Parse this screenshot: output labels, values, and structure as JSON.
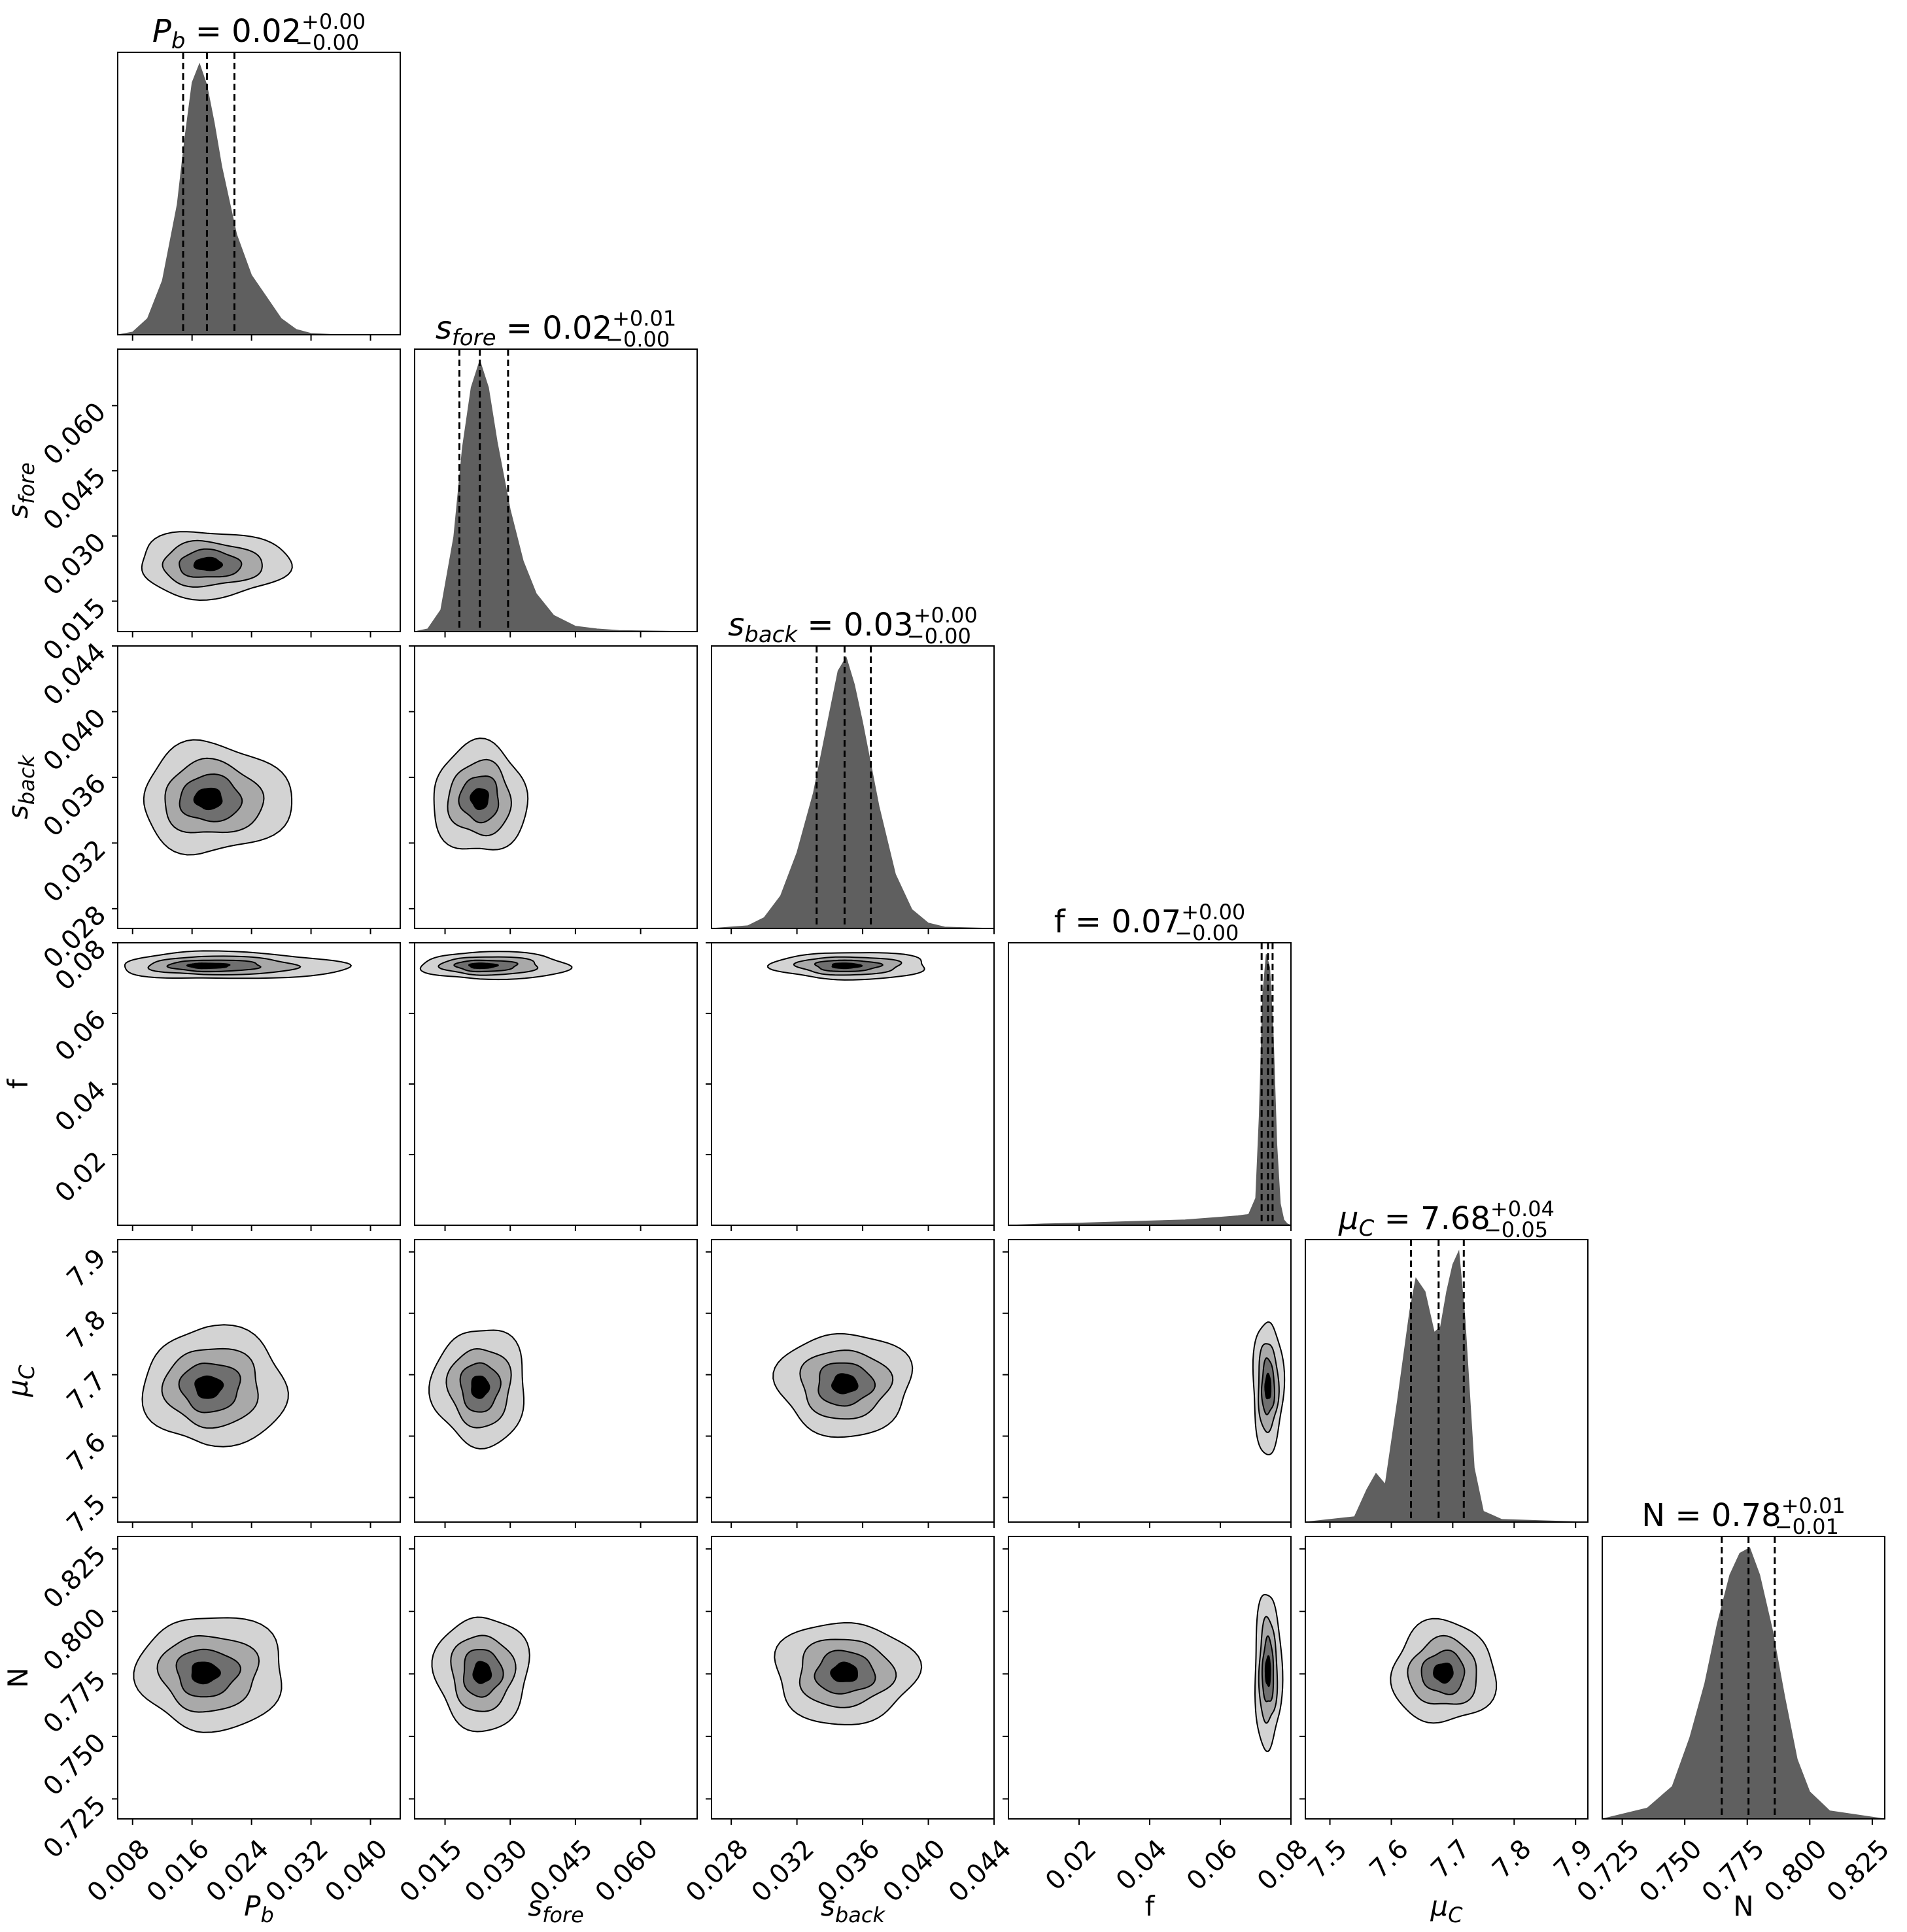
{
  "chart_data": {
    "type": "corner",
    "parameters": [
      {
        "id": "Pb",
        "sym": "P",
        "sub": "b",
        "italic": true,
        "title_value": "0.02",
        "title_plus": "+0.00",
        "title_minus": "−0.00",
        "range": [
          0.006,
          0.044
        ],
        "ticks": [
          "0.008",
          "0.016",
          "0.024",
          "0.032",
          "0.040"
        ],
        "tick_values": [
          0.008,
          0.016,
          0.024,
          0.032,
          0.04
        ],
        "median": 0.018,
        "lo": 0.0148,
        "hi": 0.0217
      },
      {
        "id": "sfore",
        "sym": "s",
        "sub": "fore",
        "italic": true,
        "title_value": "0.02",
        "title_plus": "+0.01",
        "title_minus": "−0.00",
        "range": [
          0.008,
          0.073
        ],
        "ticks": [
          "0.015",
          "0.030",
          "0.045",
          "0.060"
        ],
        "tick_values": [
          0.015,
          0.03,
          0.045,
          0.06
        ],
        "median": 0.023,
        "lo": 0.0183,
        "hi": 0.0295
      },
      {
        "id": "sback",
        "sym": "s",
        "sub": "back",
        "italic": true,
        "title_value": "0.03",
        "title_plus": "+0.00",
        "title_minus": "−0.00",
        "range": [
          0.0268,
          0.044
        ],
        "ticks": [
          "0.028",
          "0.032",
          "0.036",
          "0.040",
          "0.044"
        ],
        "tick_values": [
          0.028,
          0.032,
          0.036,
          0.04,
          0.044
        ],
        "median": 0.0349,
        "lo": 0.0332,
        "hi": 0.0365
      },
      {
        "id": "f",
        "sym": "f",
        "sub": "",
        "italic": false,
        "title_value": "0.07",
        "title_plus": "+0.00",
        "title_minus": "−0.00",
        "range": [
          0.0,
          0.08
        ],
        "ticks": [
          "0.02",
          "0.04",
          "0.06",
          "0.08"
        ],
        "tick_values": [
          0.02,
          0.04,
          0.06,
          0.08
        ],
        "median": 0.0735,
        "lo": 0.0717,
        "hi": 0.0748
      },
      {
        "id": "muC",
        "sym": "μ",
        "sub": "C",
        "italic": true,
        "title_value": "7.68",
        "title_plus": "+0.04",
        "title_minus": "−0.05",
        "range": [
          7.46,
          7.92
        ],
        "ticks": [
          "7.5",
          "7.6",
          "7.7",
          "7.8",
          "7.9"
        ],
        "tick_values": [
          7.5,
          7.6,
          7.7,
          7.8,
          7.9
        ],
        "median": 7.677,
        "lo": 7.632,
        "hi": 7.718
      },
      {
        "id": "N",
        "sym": "N",
        "sub": "",
        "italic": false,
        "title_value": "0.78",
        "title_plus": "+0.01",
        "title_minus": "−0.01",
        "range": [
          0.717,
          0.83
        ],
        "ticks": [
          "0.725",
          "0.750",
          "0.775",
          "0.800",
          "0.825"
        ],
        "tick_values": [
          0.725,
          0.75,
          0.775,
          0.8,
          0.825
        ],
        "median": 0.7755,
        "lo": 0.7648,
        "hi": 0.786
      }
    ],
    "histograms": [
      {
        "param": "Pb",
        "x": [
          0.006,
          0.008,
          0.01,
          0.012,
          0.014,
          0.015,
          0.016,
          0.017,
          0.018,
          0.019,
          0.02,
          0.022,
          0.024,
          0.026,
          0.028,
          0.03,
          0.032,
          0.036,
          0.044
        ],
        "y": [
          0,
          0.01,
          0.06,
          0.2,
          0.48,
          0.72,
          0.93,
          1.0,
          0.92,
          0.78,
          0.62,
          0.37,
          0.22,
          0.14,
          0.06,
          0.02,
          0.005,
          0,
          0
        ]
      },
      {
        "param": "sfore",
        "x": [
          0.008,
          0.011,
          0.014,
          0.017,
          0.019,
          0.021,
          0.023,
          0.025,
          0.027,
          0.03,
          0.033,
          0.036,
          0.04,
          0.045,
          0.05,
          0.055,
          0.073
        ],
        "y": [
          0,
          0.01,
          0.08,
          0.35,
          0.68,
          0.9,
          1.0,
          0.9,
          0.7,
          0.45,
          0.26,
          0.14,
          0.06,
          0.02,
          0.01,
          0.004,
          0
        ]
      },
      {
        "param": "sback",
        "x": [
          0.0268,
          0.029,
          0.03,
          0.031,
          0.032,
          0.033,
          0.0335,
          0.034,
          0.0345,
          0.035,
          0.0355,
          0.036,
          0.037,
          0.038,
          0.039,
          0.04,
          0.041,
          0.044
        ],
        "y": [
          0,
          0.01,
          0.04,
          0.12,
          0.28,
          0.5,
          0.65,
          0.8,
          0.95,
          1.0,
          0.9,
          0.76,
          0.45,
          0.2,
          0.07,
          0.02,
          0.005,
          0
        ]
      },
      {
        "param": "f",
        "x": [
          0.0,
          0.01,
          0.02,
          0.03,
          0.04,
          0.05,
          0.06,
          0.065,
          0.068,
          0.07,
          0.071,
          0.072,
          0.073,
          0.074,
          0.075,
          0.076,
          0.077,
          0.078,
          0.079,
          0.08
        ],
        "y": [
          0,
          0.005,
          0.008,
          0.012,
          0.016,
          0.02,
          0.03,
          0.035,
          0.04,
          0.1,
          0.4,
          0.85,
          1.0,
          0.95,
          0.7,
          0.3,
          0.08,
          0.02,
          0.005,
          0
        ]
      },
      {
        "param": "muC",
        "x": [
          7.46,
          7.54,
          7.56,
          7.575,
          7.59,
          7.61,
          7.63,
          7.64,
          7.655,
          7.67,
          7.68,
          7.69,
          7.7,
          7.71,
          7.72,
          7.735,
          7.75,
          7.78,
          7.92
        ],
        "y": [
          0,
          0.02,
          0.12,
          0.18,
          0.14,
          0.45,
          0.78,
          0.9,
          0.85,
          0.7,
          0.72,
          0.85,
          0.95,
          1.0,
          0.75,
          0.2,
          0.04,
          0.01,
          0
        ]
      },
      {
        "param": "N",
        "x": [
          0.717,
          0.735,
          0.745,
          0.752,
          0.758,
          0.763,
          0.768,
          0.772,
          0.776,
          0.78,
          0.785,
          0.79,
          0.795,
          0.8,
          0.808,
          0.83
        ],
        "y": [
          0,
          0.04,
          0.12,
          0.3,
          0.5,
          0.72,
          0.9,
          0.98,
          1.0,
          0.9,
          0.7,
          0.45,
          0.22,
          0.1,
          0.03,
          0
        ]
      }
    ],
    "contours": [
      {
        "x": "Pb",
        "y": "sfore",
        "cx": 0.018,
        "cy": 0.0235,
        "sx": 0.0038,
        "sy": 0.0032,
        "skew": 1.2
      },
      {
        "x": "Pb",
        "y": "sback",
        "cx": 0.018,
        "cy": 0.0347,
        "sx": 0.0036,
        "sy": 0.0014,
        "skew": 1.3
      },
      {
        "x": "sfore",
        "y": "sback",
        "cx": 0.023,
        "cy": 0.0347,
        "sx": 0.0045,
        "sy": 0.0014,
        "skew": 1.0
      },
      {
        "x": "Pb",
        "y": "f",
        "cx": 0.0175,
        "cy": 0.0735,
        "sx": 0.0045,
        "sy": 0.0016,
        "skew": 1.8
      },
      {
        "x": "sfore",
        "y": "f",
        "cx": 0.023,
        "cy": 0.0735,
        "sx": 0.0055,
        "sy": 0.0016,
        "skew": 1.6
      },
      {
        "x": "sback",
        "y": "f",
        "cx": 0.0349,
        "cy": 0.0735,
        "sx": 0.0018,
        "sy": 0.0016,
        "skew": 1.2
      },
      {
        "x": "Pb",
        "y": "muC",
        "cx": 0.018,
        "cy": 7.68,
        "sx": 0.0035,
        "sy": 0.04,
        "skew": 1.3
      },
      {
        "x": "sfore",
        "y": "muC",
        "cx": 0.023,
        "cy": 7.68,
        "sx": 0.0045,
        "sy": 0.04,
        "skew": 1.0
      },
      {
        "x": "sback",
        "y": "muC",
        "cx": 0.0349,
        "cy": 7.685,
        "sx": 0.0017,
        "sy": 0.035,
        "skew": 1.0
      },
      {
        "x": "f",
        "y": "muC",
        "cx": 0.0735,
        "cy": 7.68,
        "sx": 0.0018,
        "sy": 0.045,
        "skew": 1.0
      },
      {
        "x": "Pb",
        "y": "N",
        "cx": 0.0175,
        "cy": 0.7755,
        "sx": 0.0036,
        "sy": 0.0095,
        "skew": 1.3
      },
      {
        "x": "sfore",
        "y": "N",
        "cx": 0.0235,
        "cy": 0.7755,
        "sx": 0.0045,
        "sy": 0.0095,
        "skew": 1.0
      },
      {
        "x": "sback",
        "y": "N",
        "cx": 0.0349,
        "cy": 0.7755,
        "sx": 0.0018,
        "sy": 0.0085,
        "skew": 1.0
      },
      {
        "x": "f",
        "y": "N",
        "cx": 0.0735,
        "cy": 0.776,
        "sx": 0.0016,
        "sy": 0.013,
        "skew": 1.0
      },
      {
        "x": "muC",
        "y": "N",
        "cx": 7.685,
        "cy": 0.7755,
        "sx": 0.035,
        "sy": 0.0085,
        "skew": 1.0
      }
    ],
    "colors": {
      "hist_fill": "#5f5f5f",
      "level_1": "#d3d3d3",
      "level_2": "#a9a9a9",
      "level_3": "#6f6f6f",
      "level_4": "#000000"
    }
  }
}
